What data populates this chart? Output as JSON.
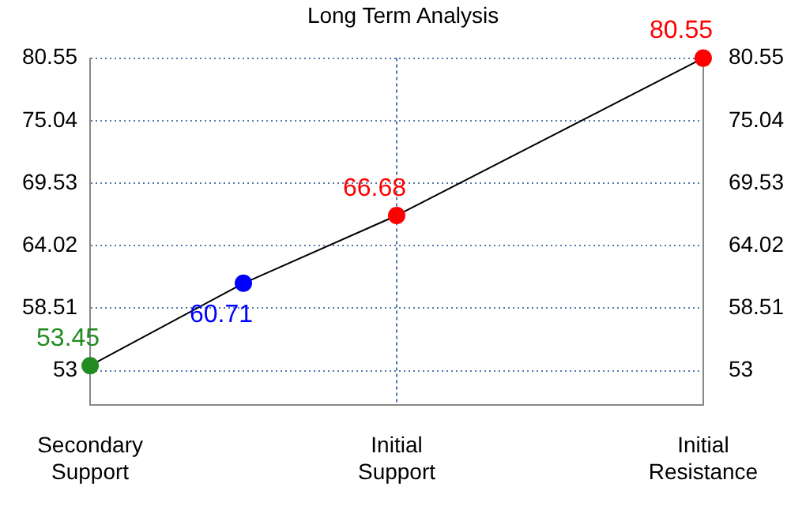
{
  "chart_data": {
    "type": "line",
    "title": "Long Term Analysis",
    "categories": [
      "Secondary Support",
      null,
      "Initial Support",
      null,
      "Initial Resistance"
    ],
    "series": [
      {
        "color": "#000000",
        "colors": [
          "#228b22",
          "#0000ff",
          "#ff0000",
          null,
          "#ff0000"
        ],
        "values": [
          53.45,
          60.71,
          66.68,
          null,
          80.55
        ]
      }
    ],
    "ylim": [
      50,
      80.55
    ],
    "yticks": [
      53,
      58.51,
      64.02,
      69.53,
      75.04,
      80.55
    ],
    "y2lim": [
      50,
      80.55
    ],
    "y2ticks": [
      53,
      58.51,
      64.02,
      69.53,
      75.04,
      80.55
    ],
    "ref_lines": [
      {
        "axis": "x",
        "value": "Initial Support",
        "color": "#5577aa",
        "line_style": "dotted"
      }
    ],
    "data_labels": true,
    "grid": "y",
    "legend": false,
    "marker": "circle",
    "line_style": "solid"
  }
}
